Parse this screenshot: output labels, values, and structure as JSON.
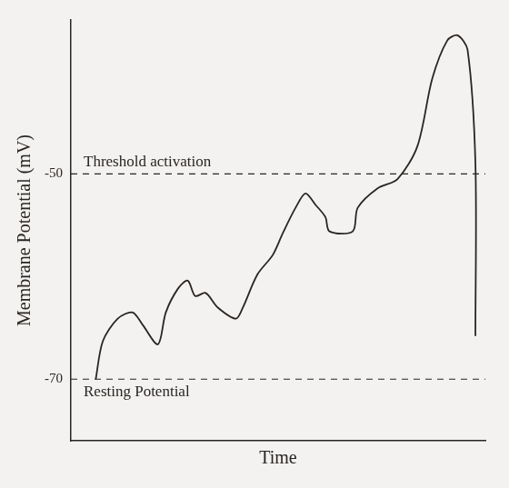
{
  "chart_data": {
    "type": "line",
    "x_label": "Time",
    "y_label": "Membrane Potential (mV)",
    "x": [
      6,
      7.7,
      11.3,
      14.9,
      17.3,
      21,
      22.9,
      25.8,
      28.2,
      30,
      32.5,
      35.4,
      39.8,
      41.4,
      45,
      48.7,
      51.1,
      54.2,
      56.6,
      59,
      61.4,
      62.4,
      68,
      69.2,
      74,
      78.8,
      83.6,
      87.2,
      90.8,
      93.3,
      95.7,
      97.6,
      97.6
    ],
    "values": [
      -70,
      -66.3,
      -64.1,
      -63.5,
      -64.7,
      -66.6,
      -63.5,
      -61.2,
      -60.4,
      -61.9,
      -61.6,
      -63,
      -64.1,
      -63.1,
      -59.8,
      -57.9,
      -55.8,
      -53.3,
      -51.9,
      -53,
      -54.2,
      -55.6,
      -55.6,
      -53.3,
      -51.4,
      -50.5,
      -47.3,
      -40.7,
      -37,
      -36.5,
      -37.9,
      -49,
      -65.8
    ],
    "color": "#2a2522",
    "xlim": [
      0,
      100
    ],
    "ylim": [
      -76,
      -35
    ],
    "yticks": [
      -70,
      -50
    ],
    "tick_labels": "y",
    "grid": false,
    "annotations": [
      {
        "text": "Threshold activation",
        "y": -50,
        "line_style": "dashed"
      },
      {
        "text": "Resting Potential",
        "y": -70,
        "line_style": "dashed"
      }
    ]
  }
}
